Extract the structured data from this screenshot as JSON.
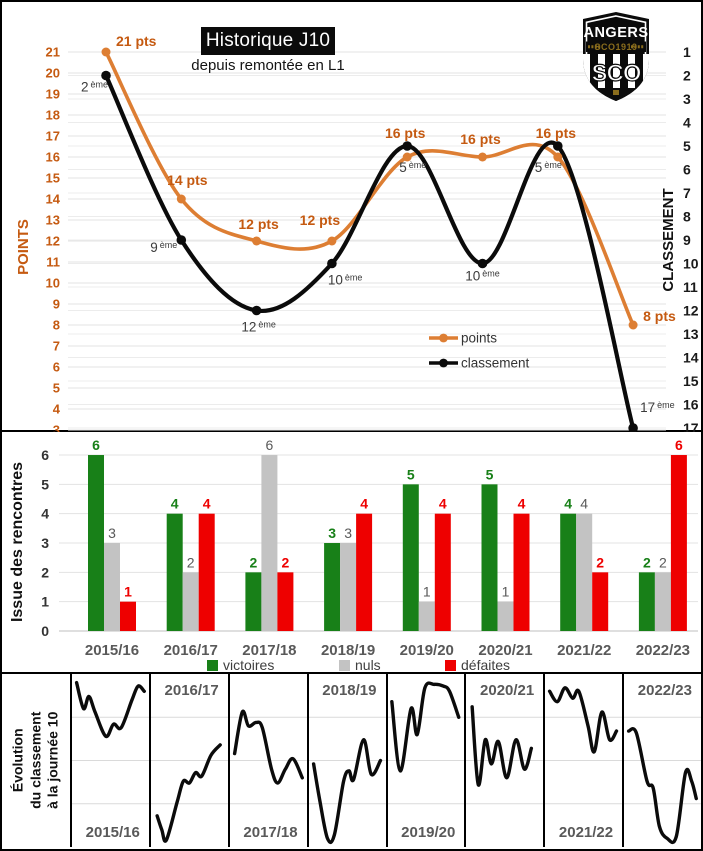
{
  "header": {
    "title": "Historique J10",
    "subtitle": "depuis remontée en L1"
  },
  "logo": {
    "club": "ANGERS",
    "band": "SCO1919",
    "monogram": "SCO"
  },
  "colors": {
    "orange_line": "#DD7E33",
    "orange_text": "#C55A11",
    "black_line": "#0b0b0b",
    "green": "#188018",
    "gray": "#C3C3C3",
    "red": "#EE0000",
    "grid": "#E3E3E3",
    "grid2": "#ECECEC",
    "axis_gray": "#BFBFBF",
    "label_gray": "#595959",
    "rank_text": "#3b3b3b"
  },
  "chart_data": [
    {
      "type": "line",
      "title": "Historique J10",
      "subtitle": "depuis remontée en L1",
      "categories": [
        "2015/16",
        "2016/17",
        "2017/18",
        "2018/19",
        "2019/20",
        "2020/21",
        "2021/22",
        "2022/23"
      ],
      "left_axis": {
        "title": "POINTS",
        "min": 3,
        "max": 21,
        "step": 1
      },
      "right_axis": {
        "title": "CLASSEMENT",
        "min": 1,
        "max": 17,
        "step": 1,
        "inverted": true
      },
      "grid": true,
      "legend_position": "middle-right",
      "series": [
        {
          "name": "points",
          "axis": "left",
          "values": [
            21,
            14,
            12,
            12,
            16,
            16,
            16,
            8
          ],
          "labels": [
            {
              "text": "21 pts",
              "dx": 10,
              "dy": -6,
              "anchor": "start"
            },
            {
              "text": "14 pts",
              "dx": 6,
              "dy": -14,
              "anchor": "middle"
            },
            {
              "text": "12 pts",
              "dx": 2,
              "dy": -12,
              "anchor": "middle"
            },
            {
              "text": "12 pts",
              "dx": -12,
              "dy": -16,
              "anchor": "middle"
            },
            {
              "text": "16 pts",
              "dx": -2,
              "dy": -19,
              "anchor": "middle"
            },
            {
              "text": "16 pts",
              "dx": -2,
              "dy": -13,
              "anchor": "middle"
            },
            {
              "text": "16 pts",
              "dx": -2,
              "dy": -19,
              "anchor": "middle"
            },
            {
              "text": "8 pts",
              "dx": 10,
              "dy": -4,
              "anchor": "start"
            }
          ]
        },
        {
          "name": "classement",
          "axis": "right",
          "values": [
            2,
            9,
            12,
            10,
            5,
            10,
            5,
            17
          ],
          "suffix": "ème",
          "labels": [
            {
              "text": "2",
              "dx": 2,
              "dy": 16,
              "anchor": "end"
            },
            {
              "text": "9",
              "dx": -4,
              "dy": 12,
              "anchor": "end"
            },
            {
              "text": "12",
              "dx": 2,
              "dy": 21,
              "anchor": "middle"
            },
            {
              "text": "10",
              "dx": -4,
              "dy": 21,
              "anchor": "start"
            },
            {
              "text": "5",
              "dx": -8,
              "dy": 26,
              "anchor": "start"
            },
            {
              "text": "10",
              "dx": 0,
              "dy": 17,
              "anchor": "middle"
            },
            {
              "text": "5",
              "dx": -23,
              "dy": 26,
              "anchor": "start"
            },
            {
              "text": "17",
              "dx": 7,
              "dy": -16,
              "anchor": "start"
            }
          ]
        }
      ]
    },
    {
      "type": "bar",
      "ylabel": "Issue des rencontres",
      "ylim": [
        0,
        6
      ],
      "grid": true,
      "legend_position": "bottom",
      "categories": [
        "2015/16",
        "2016/17",
        "2017/18",
        "2018/19",
        "2019/20",
        "2020/21",
        "2021/22",
        "2022/23"
      ],
      "series": [
        {
          "name": "victoires",
          "values": [
            6,
            4,
            2,
            3,
            5,
            5,
            4,
            2
          ]
        },
        {
          "name": "nuls",
          "values": [
            3,
            2,
            6,
            3,
            1,
            1,
            4,
            2
          ]
        },
        {
          "name": "défaites",
          "values": [
            1,
            4,
            2,
            4,
            4,
            4,
            2,
            6
          ]
        }
      ]
    },
    {
      "type": "sparklines",
      "title_lines": [
        "Évolution",
        "du classement",
        "à la journée 10"
      ],
      "note": "classement evolution over matchdays 1-10, one mini line chart per season, y normalized 0=best rank (top) to 100 (bottom)",
      "cells": [
        {
          "season": "2015/16",
          "label_pos": "bottom",
          "points": [
            [
              6,
              5
            ],
            [
              15,
              20
            ],
            [
              22,
              13
            ],
            [
              30,
              22
            ],
            [
              44,
              36
            ],
            [
              54,
              29
            ],
            [
              64,
              31
            ],
            [
              78,
              15
            ],
            [
              86,
              7
            ],
            [
              94,
              10
            ]
          ]
        },
        {
          "season": "2016/17",
          "label_pos": "top",
          "points": [
            [
              8,
              82
            ],
            [
              14,
              90
            ],
            [
              20,
              96
            ],
            [
              34,
              74
            ],
            [
              42,
              62
            ],
            [
              50,
              63
            ],
            [
              58,
              57
            ],
            [
              66,
              59
            ],
            [
              78,
              47
            ],
            [
              90,
              41
            ]
          ]
        },
        {
          "season": "2017/18",
          "label_pos": "bottom",
          "points": [
            [
              6,
              46
            ],
            [
              16,
              22
            ],
            [
              24,
              30
            ],
            [
              34,
              28
            ],
            [
              42,
              31
            ],
            [
              54,
              55
            ],
            [
              62,
              63
            ],
            [
              72,
              55
            ],
            [
              82,
              49
            ],
            [
              94,
              60
            ]
          ]
        },
        {
          "season": "2018/19",
          "label_pos": "top",
          "points": [
            [
              6,
              52
            ],
            [
              14,
              73
            ],
            [
              24,
              95
            ],
            [
              33,
              93
            ],
            [
              45,
              62
            ],
            [
              52,
              56
            ],
            [
              58,
              61
            ],
            [
              71,
              38
            ],
            [
              81,
              58
            ],
            [
              93,
              50
            ]
          ]
        },
        {
          "season": "2019/20",
          "label_pos": "bottom",
          "points": [
            [
              5,
              16
            ],
            [
              16,
              56
            ],
            [
              30,
              20
            ],
            [
              38,
              35
            ],
            [
              48,
              8
            ],
            [
              60,
              6
            ],
            [
              72,
              7
            ],
            [
              80,
              10
            ],
            [
              92,
              25
            ]
          ]
        },
        {
          "season": "2020/21",
          "label_pos": "top",
          "points": [
            [
              8,
              19
            ],
            [
              16,
              64
            ],
            [
              25,
              38
            ],
            [
              33,
              52
            ],
            [
              42,
              39
            ],
            [
              53,
              60
            ],
            [
              65,
              38
            ],
            [
              76,
              55
            ],
            [
              85,
              43
            ]
          ]
        },
        {
          "season": "2021/22",
          "label_pos": "bottom",
          "points": [
            [
              6,
              10
            ],
            [
              16,
              16
            ],
            [
              26,
              8
            ],
            [
              36,
              14
            ],
            [
              44,
              10
            ],
            [
              56,
              30
            ],
            [
              64,
              45
            ],
            [
              74,
              22
            ],
            [
              84,
              38
            ],
            [
              93,
              33
            ]
          ]
        },
        {
          "season": "2022/23",
          "label_pos": "top",
          "points": [
            [
              6,
              33
            ],
            [
              16,
              34
            ],
            [
              30,
              62
            ],
            [
              38,
              66
            ],
            [
              46,
              88
            ],
            [
              56,
              95
            ],
            [
              68,
              94
            ],
            [
              80,
              57
            ],
            [
              88,
              62
            ],
            [
              94,
              72
            ]
          ]
        }
      ]
    }
  ]
}
